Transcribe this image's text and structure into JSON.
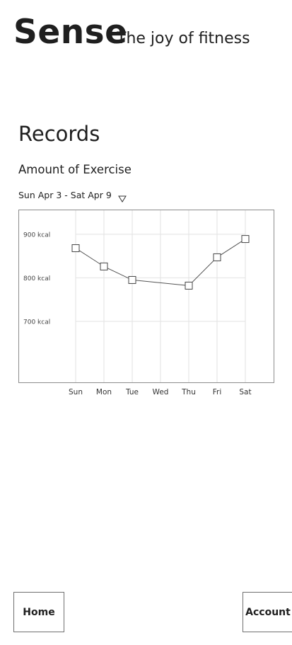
{
  "header": {
    "brand": "Sense",
    "tagline": "The joy of fitness"
  },
  "records": {
    "title": "Records",
    "section_title": "Amount of Exercise",
    "date_range": "Sun Apr 3 - Sat Apr 9",
    "dropdown_icon": "triangle-down-icon"
  },
  "chart_data": {
    "type": "line",
    "categories": [
      "Sun",
      "Mon",
      "Tue",
      "Wed",
      "Thu",
      "Fri",
      "Sat"
    ],
    "series": [
      {
        "values": [
          868,
          826,
          795,
          null,
          782,
          847,
          889
        ]
      }
    ],
    "y_ticks": [
      {
        "value": 900,
        "label": "900 kcal"
      },
      {
        "value": 800,
        "label": "800 kcal"
      },
      {
        "value": 700,
        "label": "700 kcal"
      }
    ],
    "ylim": [
      560,
      955
    ],
    "marker": "square",
    "grid": true
  },
  "nav": {
    "home_label": "Home",
    "account_label": "Account"
  }
}
